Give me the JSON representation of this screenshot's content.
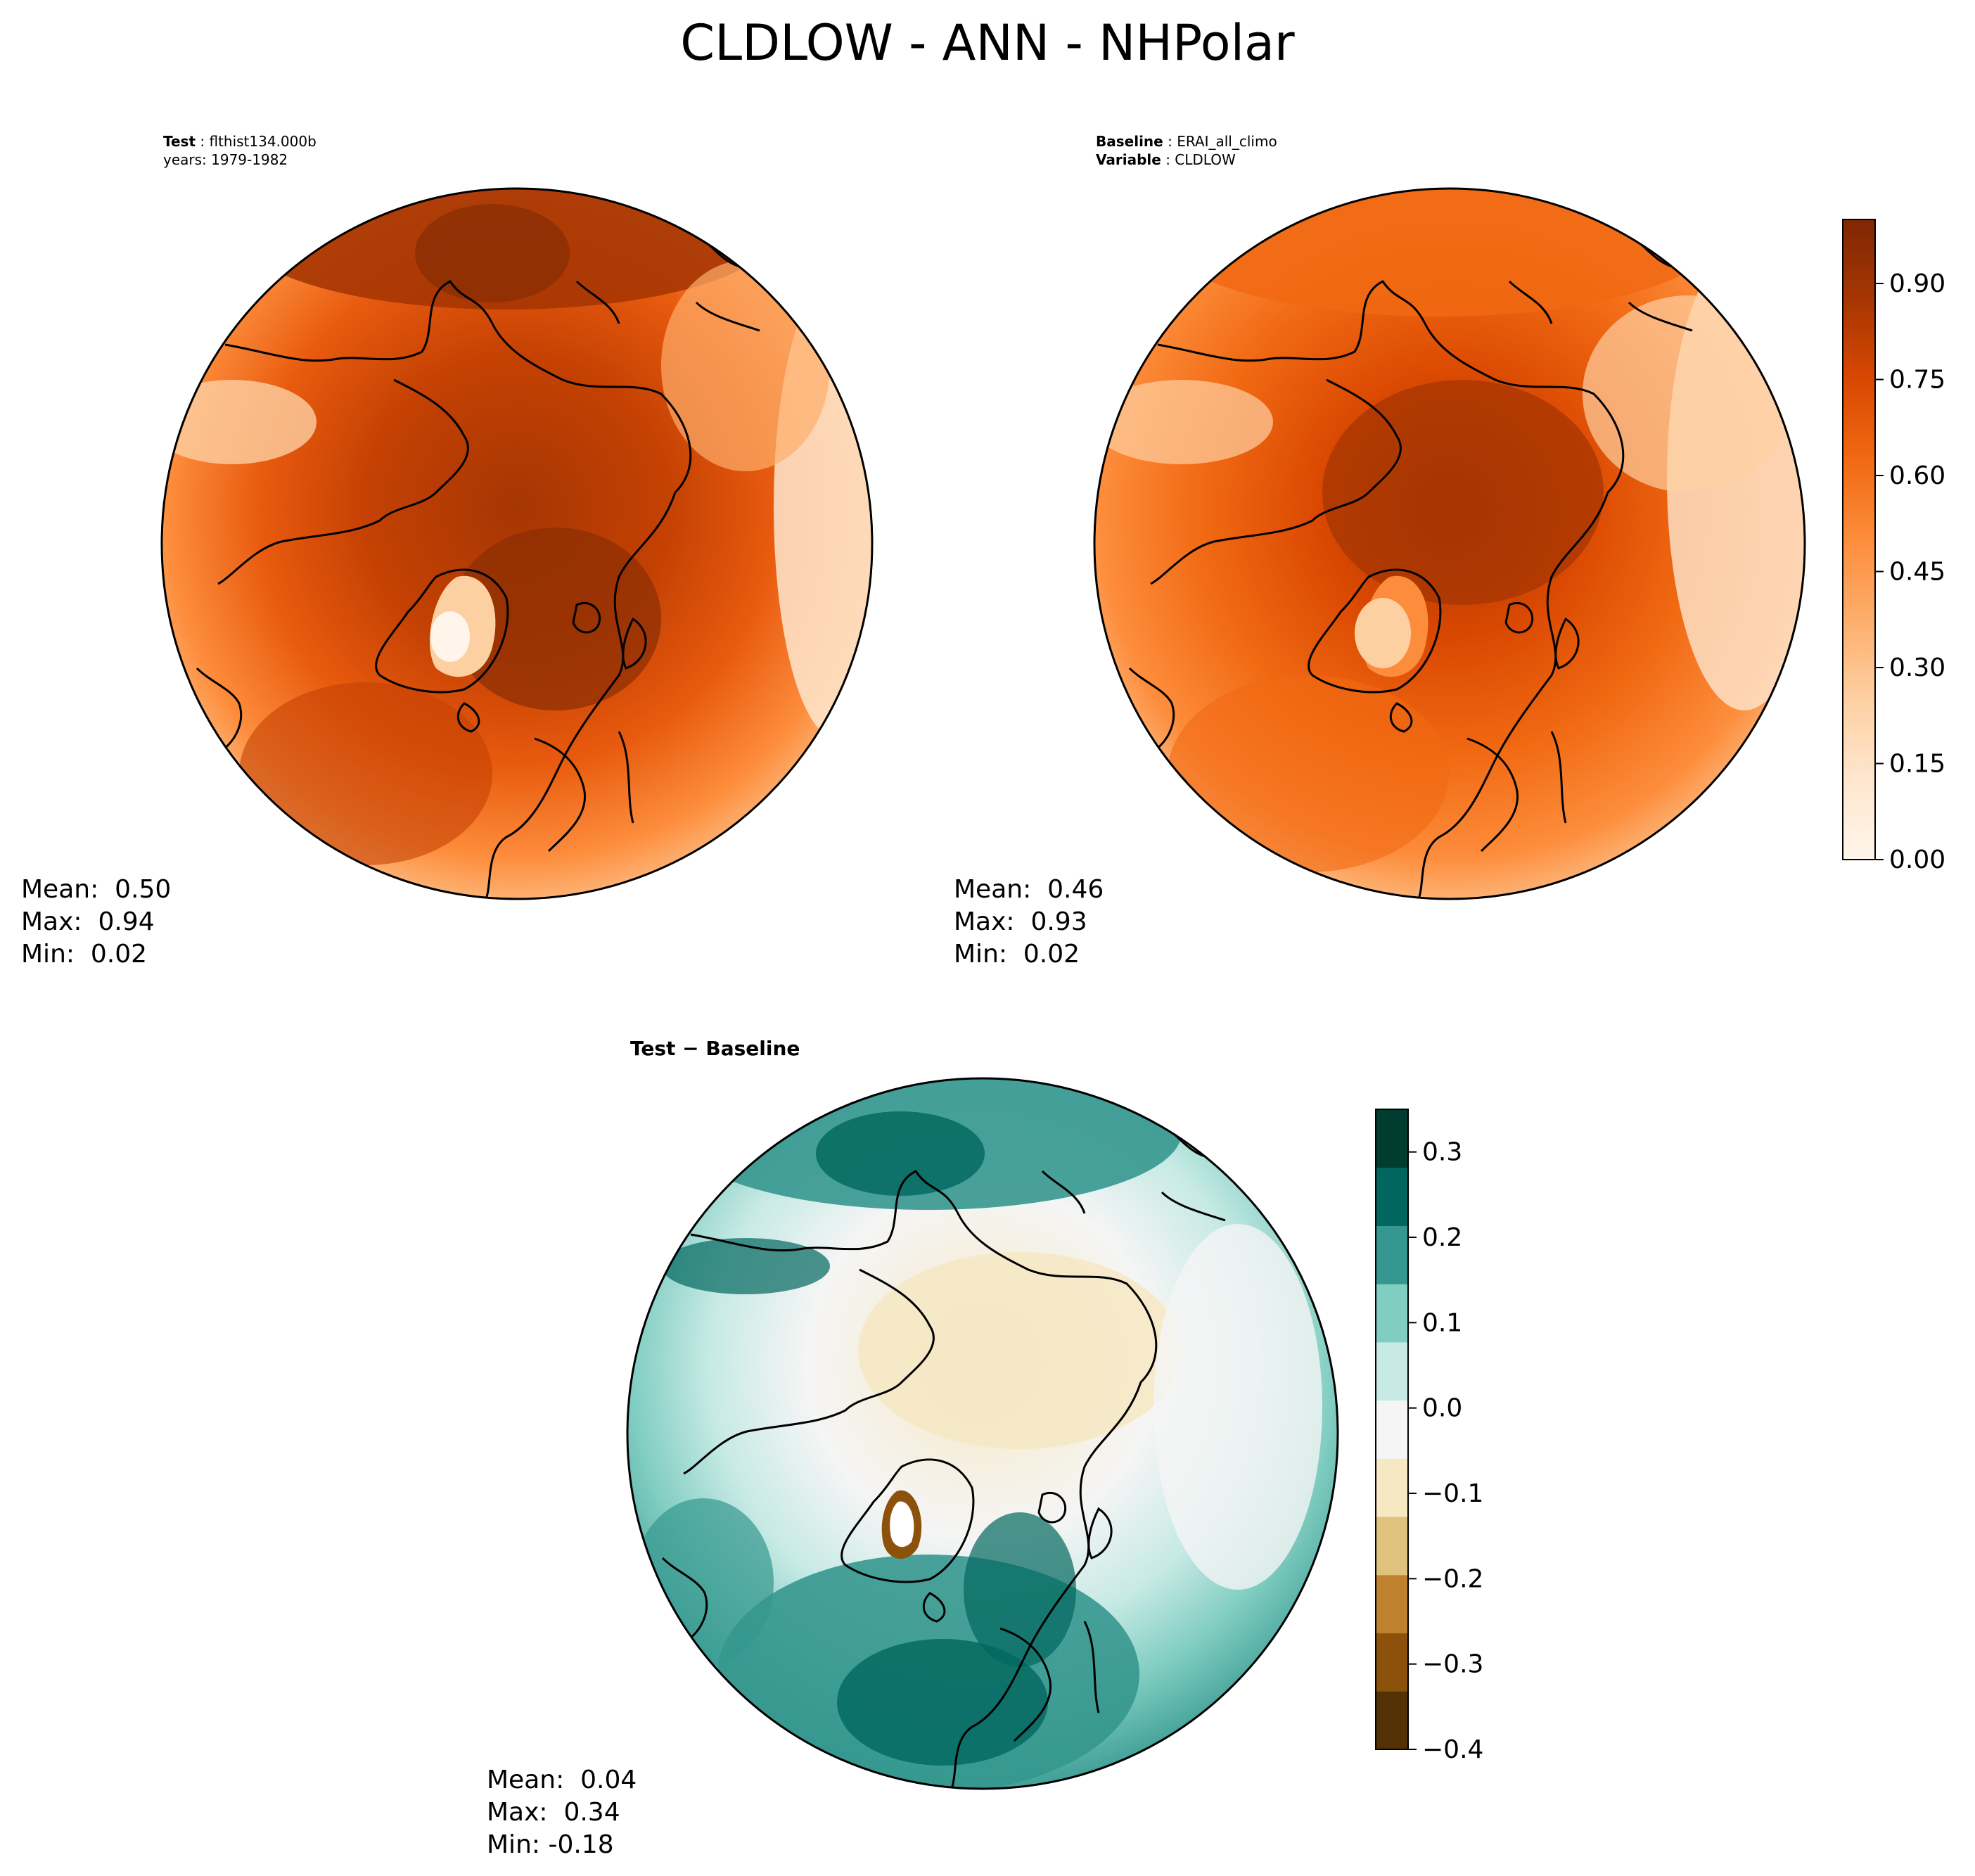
{
  "figure": {
    "title": "CLDLOW - ANN - NHPolar"
  },
  "panels": {
    "test": {
      "label_bold": "Test",
      "label_value": "flthist134.000b",
      "line2": "years: 1979-1982",
      "stats": {
        "mean": "Mean:  0.50",
        "max": "Max:  0.94",
        "min": "Min:  0.02"
      }
    },
    "baseline": {
      "label_bold": "Baseline",
      "label_value": "ERAI_all_climo",
      "line2_bold": "Variable",
      "line2_value": "CLDLOW",
      "stats": {
        "mean": "Mean:  0.46",
        "max": "Max:  0.93",
        "min": "Min:  0.02"
      }
    },
    "diff": {
      "title_left": "Test",
      "title_sep": " − ",
      "title_right": "Baseline",
      "stats": {
        "mean": "Mean:  0.04",
        "max": "Max:  0.34",
        "min": "Min: -0.18"
      }
    }
  },
  "chart_data": {
    "type": "map",
    "projection": "north-polar-stereographic",
    "colorbars": [
      {
        "name": "main",
        "colormap": "Oranges",
        "range": [
          0.0,
          1.0
        ],
        "ticks": [
          "0.00",
          "0.15",
          "0.30",
          "0.45",
          "0.60",
          "0.75",
          "0.90"
        ],
        "tick_values": [
          0.0,
          0.15,
          0.3,
          0.45,
          0.6,
          0.75,
          0.9
        ]
      },
      {
        "name": "diff",
        "colormap": "BrBG",
        "range": [
          -0.4,
          0.35
        ],
        "ticks": [
          "−0.4",
          "−0.3",
          "−0.2",
          "−0.1",
          "0.0",
          "0.1",
          "0.2",
          "0.3"
        ],
        "tick_values": [
          -0.4,
          -0.3,
          -0.2,
          -0.1,
          0.0,
          0.1,
          0.2,
          0.3
        ]
      }
    ],
    "colors": {
      "oranges": [
        "#fff5eb",
        "#fee6ce",
        "#fdd0a2",
        "#fdae6b",
        "#fd8d3c",
        "#f16913",
        "#d94801",
        "#a63603",
        "#7f2704"
      ],
      "brbg": [
        "#543005",
        "#8c510a",
        "#bf812d",
        "#dfc27d",
        "#f6e8c3",
        "#f5f5f5",
        "#c7eae5",
        "#80cdc1",
        "#35978f",
        "#01665e",
        "#003c30"
      ]
    }
  }
}
